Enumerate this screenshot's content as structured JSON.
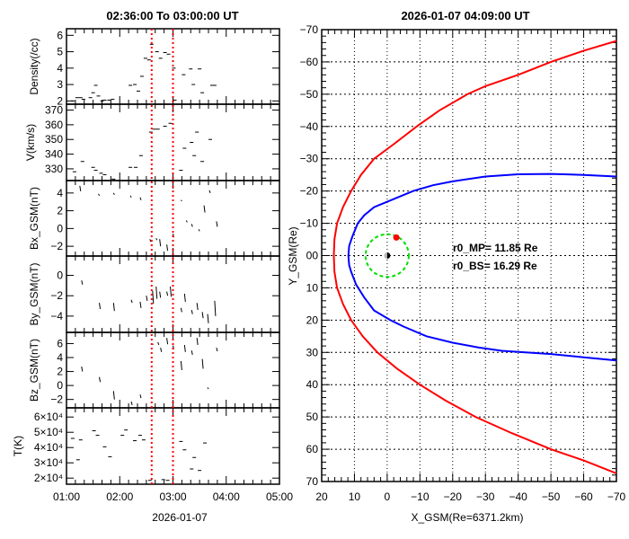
{
  "colors": {
    "bow_shock": "#ff0000",
    "magnetopause": "#0000ff",
    "geo_orbit": "#00dd00",
    "interval_marker": "#ff0000",
    "satellite": "#ff0000"
  },
  "chart_data": [
    {
      "type": "scatter",
      "title": "02:36:00  To  03:00:00  UT",
      "xlabel": "2026-01-07",
      "x_ticks": [
        "01:00",
        "02:00",
        "03:00",
        "04:00",
        "05:00"
      ],
      "xlim": [
        "01:00",
        "05:00"
      ],
      "interval_markers": [
        "02:36",
        "03:00"
      ],
      "panels": [
        {
          "ylabel": "Density(/cc)",
          "ylim": [
            1.8,
            6.4
          ],
          "y_ticks": [
            "2",
            "3",
            "4",
            "5",
            "6"
          ],
          "y_tick_values": [
            2,
            3,
            4,
            5,
            6
          ],
          "style": "dash",
          "points": [
            [
              "01:07",
              2.0
            ],
            [
              "01:12",
              2.2
            ],
            [
              "01:16",
              2.2
            ],
            [
              "01:19",
              2.1
            ],
            [
              "01:27",
              2.2
            ],
            [
              "01:30",
              2.5
            ],
            [
              "01:33",
              2.95
            ],
            [
              "01:36",
              2.3
            ],
            [
              "01:40",
              2.0
            ],
            [
              "01:43",
              2.05
            ],
            [
              "01:48",
              2.05
            ],
            [
              "01:52",
              2.1
            ],
            [
              "02:12",
              2.95
            ],
            [
              "02:17",
              3.0
            ],
            [
              "02:21",
              2.6
            ],
            [
              "02:25",
              3.5
            ],
            [
              "02:29",
              4.6
            ],
            [
              "02:33",
              4.5
            ],
            [
              "02:36",
              5.45
            ],
            [
              "02:42",
              5.0
            ],
            [
              "02:46",
              4.6
            ],
            [
              "02:51",
              4.95
            ],
            [
              "02:55",
              4.85
            ],
            [
              "03:01",
              4.0
            ],
            [
              "03:02",
              2.05
            ],
            [
              "03:12",
              3.6
            ],
            [
              "03:20",
              3.95
            ],
            [
              "03:23",
              3.0
            ],
            [
              "03:30",
              3.95
            ],
            [
              "03:33",
              2.5
            ],
            [
              "03:44",
              2.95
            ],
            [
              "03:47",
              2.95
            ]
          ]
        },
        {
          "ylabel": "V(km/s)",
          "ylim": [
            322,
            374
          ],
          "y_ticks": [
            "330",
            "340",
            "350",
            "360",
            "370"
          ],
          "y_tick_values": [
            330,
            340,
            350,
            360,
            370
          ],
          "style": "dash",
          "points": [
            [
              "01:09",
              328
            ],
            [
              "01:13",
              322
            ],
            [
              "01:18",
              335
            ],
            [
              "01:30",
              331
            ],
            [
              "01:33",
              329
            ],
            [
              "01:39",
              327
            ],
            [
              "01:43",
              326
            ],
            [
              "01:48",
              322
            ],
            [
              "01:53",
              323
            ],
            [
              "02:12",
              331
            ],
            [
              "02:18",
              331
            ],
            [
              "02:24",
              339
            ],
            [
              "02:35",
              355
            ],
            [
              "02:39",
              357
            ],
            [
              "02:43",
              357
            ],
            [
              "02:51",
              359
            ],
            [
              "02:57",
              361
            ],
            [
              "03:09",
              329
            ],
            [
              "03:13",
              344
            ],
            [
              "03:21",
              348
            ],
            [
              "03:24",
              339
            ],
            [
              "03:27",
              355
            ],
            [
              "03:33",
              335
            ],
            [
              "03:42",
              350
            ]
          ]
        },
        {
          "ylabel": "Bx_GSM(nT)",
          "ylim": [
            -3.1,
            5.4
          ],
          "y_ticks": [
            "−2",
            "0",
            "2",
            "4"
          ],
          "y_tick_values": [
            -2,
            0,
            2,
            4
          ],
          "style": "segment",
          "points": [
            [
              "01:15",
              4.8,
              4.2
            ],
            [
              "01:36",
              3.9,
              3.7
            ],
            [
              "01:53",
              4.0,
              3.8
            ],
            [
              "02:12",
              3.7,
              3.5
            ],
            [
              "02:23",
              3.5,
              3.2
            ],
            [
              "02:34",
              -1.2,
              -1.5
            ],
            [
              "02:41",
              -1.1,
              -1.3
            ],
            [
              "02:45",
              -1.2,
              -2.0
            ],
            [
              "02:53",
              -1.8,
              -2.5
            ],
            [
              "03:00",
              -0.6,
              -1.0
            ],
            [
              "03:09",
              3.2,
              3.1
            ],
            [
              "03:15",
              0.9,
              0.7
            ],
            [
              "03:21",
              0.5,
              0.2
            ],
            [
              "03:29",
              -0.1,
              -0.3
            ],
            [
              "03:35",
              2.6,
              1.8
            ],
            [
              "03:41",
              4.3,
              4.0
            ],
            [
              "03:49",
              0.8,
              0.2
            ]
          ]
        },
        {
          "ylabel": "By_GSM(nT)",
          "ylim": [
            -5.6,
            1.9
          ],
          "y_ticks": [
            "−4",
            "−2",
            "0"
          ],
          "y_tick_values": [
            -4,
            -2,
            0
          ],
          "style": "segment",
          "points": [
            [
              "01:17",
              -0.5,
              -0.9
            ],
            [
              "01:37",
              -2.7,
              -3.3
            ],
            [
              "01:53",
              -2.7,
              -3.5
            ],
            [
              "02:13",
              -2.4,
              -2.7
            ],
            [
              "02:23",
              -2.6,
              -3.2
            ],
            [
              "02:30",
              -2.0,
              -2.5
            ],
            [
              "02:37",
              -1.5,
              -2.8
            ],
            [
              "02:41",
              -1.1,
              -2.3
            ],
            [
              "02:45",
              -1.6,
              -2.2
            ],
            [
              "02:53",
              -1.6,
              -2.0
            ],
            [
              "02:57",
              -1.1,
              -2.1
            ],
            [
              "03:09",
              -3.2,
              -3.6
            ],
            [
              "03:13",
              -1.8,
              -2.6
            ],
            [
              "03:21",
              -3.4,
              -3.8
            ],
            [
              "03:27",
              -2.7,
              -3.4
            ],
            [
              "03:33",
              -3.6,
              -4.2
            ],
            [
              "03:39",
              -3.8,
              -4.7
            ],
            [
              "03:47",
              -2.5,
              -4.0
            ]
          ]
        },
        {
          "ylabel": "Bz_GSM(nT)",
          "ylim": [
            -3.2,
            7.6
          ],
          "y_ticks": [
            "−2",
            "0",
            "2",
            "4",
            "6"
          ],
          "y_tick_values": [
            -2,
            0,
            2,
            4,
            6
          ],
          "style": "segment",
          "points": [
            [
              "01:17",
              2.7,
              2.0
            ],
            [
              "01:37",
              1.2,
              0.5
            ],
            [
              "01:53",
              -0.8,
              -2.0
            ],
            [
              "02:13",
              -2.3,
              -2.8
            ],
            [
              "02:23",
              -1.3,
              -1.8
            ],
            [
              "02:37",
              5.9,
              5.9
            ],
            [
              "02:43",
              6.2,
              5.8
            ],
            [
              "02:46",
              5.4,
              4.8
            ],
            [
              "02:53",
              6.8,
              5.9
            ],
            [
              "03:00",
              5.7,
              5.2
            ],
            [
              "03:09",
              3.5,
              2.2
            ],
            [
              "03:13",
              5.8,
              4.8
            ],
            [
              "03:21",
              5.0,
              4.4
            ],
            [
              "03:27",
              6.8,
              5.8
            ],
            [
              "03:33",
              3.8,
              2.4
            ],
            [
              "03:39",
              -0.3,
              -0.5
            ],
            [
              "03:49",
              5.4,
              4.9
            ]
          ]
        },
        {
          "ylabel": "T(K)",
          "ylim": [
            16000,
            66000
          ],
          "y_ticks": [
            "2×10⁴",
            "3×10⁴",
            "4×10⁴",
            "5×10⁴",
            "6×10⁴"
          ],
          "y_tick_values": [
            20000,
            30000,
            40000,
            50000,
            60000
          ],
          "style": "dash",
          "points": [
            [
              "01:07",
              46000
            ],
            [
              "01:13",
              32000
            ],
            [
              "01:16",
              45000
            ],
            [
              "01:31",
              51000
            ],
            [
              "01:35",
              48000
            ],
            [
              "01:43",
              40500
            ],
            [
              "01:49",
              34000
            ],
            [
              "01:53",
              16000
            ],
            [
              "02:03",
              48000
            ],
            [
              "02:07",
              51500
            ],
            [
              "02:17",
              44500
            ],
            [
              "02:23",
              48000
            ],
            [
              "02:27",
              45000
            ],
            [
              "02:34",
              18500
            ],
            [
              "02:49",
              19000
            ],
            [
              "02:54",
              18500
            ],
            [
              "03:09",
              44000
            ],
            [
              "03:13",
              38500
            ],
            [
              "03:21",
              26000
            ],
            [
              "03:24",
              33500
            ],
            [
              "03:30",
              25000
            ],
            [
              "03:36",
              43000
            ],
            [
              "03:41",
              66000
            ]
          ]
        }
      ]
    },
    {
      "type": "line",
      "title": "2026-01-07  04:09:00  UT",
      "xlabel": "X_GSM(Re=6371.2km)",
      "ylabel": "Y_GSM(Re)",
      "xlim": [
        20,
        -70
      ],
      "ylim": [
        -70,
        70
      ],
      "x_ticks": [
        "20",
        "10",
        "0",
        "−10",
        "−20",
        "−30",
        "−40",
        "−50",
        "−60",
        "−70"
      ],
      "x_tick_values": [
        20,
        10,
        0,
        -10,
        -20,
        -30,
        -40,
        -50,
        -60,
        -70
      ],
      "y_ticks": [
        "−70",
        "−60",
        "−50",
        "−40",
        "−30",
        "−20",
        "−10",
        "00",
        "10",
        "20",
        "30",
        "40",
        "50",
        "60",
        "70"
      ],
      "y_tick_values": [
        -70,
        -60,
        -50,
        -40,
        -30,
        -20,
        -10,
        0,
        10,
        20,
        30,
        40,
        50,
        60,
        70
      ],
      "grid": true,
      "series": [
        {
          "name": "r0_BS= 16.29 Re",
          "color": "#ff0000",
          "points": [
            [
              -70,
              -66.5
            ],
            [
              -60,
              -63.5
            ],
            [
              -50,
              -60
            ],
            [
              -40,
              -56
            ],
            [
              -30,
              -52.5
            ],
            [
              -24.5,
              -50
            ],
            [
              -16,
              -45
            ],
            [
              -9,
              -40
            ],
            [
              -2,
              -34.5
            ],
            [
              4,
              -30
            ],
            [
              8,
              -25
            ],
            [
              11,
              -20
            ],
            [
              13.5,
              -15
            ],
            [
              15.3,
              -10
            ],
            [
              16.1,
              -5
            ],
            [
              16.3,
              0
            ],
            [
              16.1,
              5
            ],
            [
              15.3,
              10
            ],
            [
              13.5,
              15
            ],
            [
              11,
              20
            ],
            [
              7.5,
              25
            ],
            [
              3,
              30
            ],
            [
              -3,
              35
            ],
            [
              -10,
              40
            ],
            [
              -18,
              45
            ],
            [
              -27,
              50
            ],
            [
              -38,
              55
            ],
            [
              -50,
              60
            ],
            [
              -60,
              63.5
            ],
            [
              -70,
              67.5
            ]
          ]
        },
        {
          "name": "r0_MP= 11.85 Re",
          "color": "#0000ff",
          "points": [
            [
              -70,
              -24.5
            ],
            [
              -60,
              -25
            ],
            [
              -50,
              -25.3
            ],
            [
              -40,
              -25.2
            ],
            [
              -30,
              -24.5
            ],
            [
              -20,
              -23
            ],
            [
              -14,
              -21.8
            ],
            [
              -8,
              -20
            ],
            [
              -2,
              -17.5
            ],
            [
              4,
              -15
            ],
            [
              7,
              -12.5
            ],
            [
              9,
              -10
            ],
            [
              10.6,
              -6
            ],
            [
              11.6,
              -3
            ],
            [
              11.85,
              0
            ],
            [
              11.6,
              3
            ],
            [
              11,
              5
            ],
            [
              9.5,
              9
            ],
            [
              7,
              13
            ],
            [
              4,
              17
            ],
            [
              -1,
              20
            ],
            [
              -5,
              22
            ],
            [
              -12,
              25
            ],
            [
              -20,
              27
            ],
            [
              -28,
              28.5
            ],
            [
              -35,
              29.5
            ],
            [
              -50,
              30.5
            ],
            [
              -60,
              31.5
            ],
            [
              -70,
              32.5
            ]
          ]
        }
      ],
      "annotations": [
        "r0_MP= 11.85 Re",
        "r0_BS= 16.29 Re"
      ],
      "geo_orbit_radius_re": 6.6,
      "satellite_position": [
        -2.8,
        -5.6
      ],
      "earth_position": [
        0,
        0
      ]
    }
  ]
}
